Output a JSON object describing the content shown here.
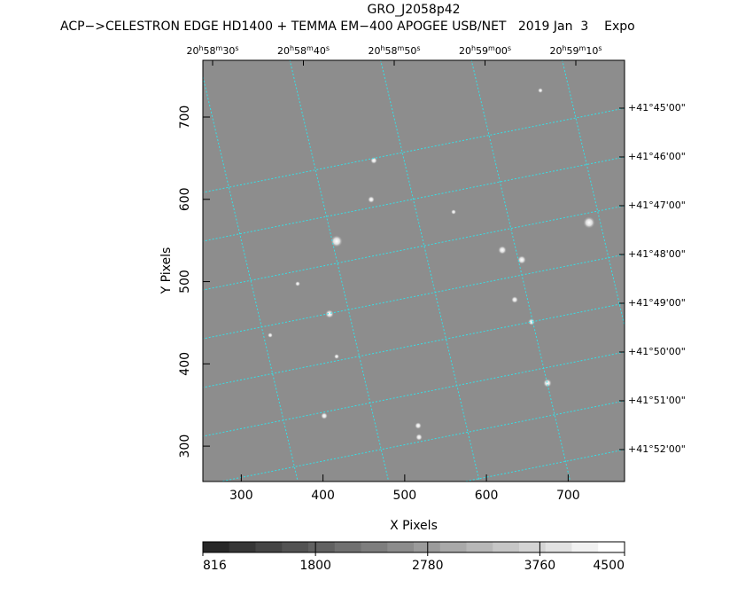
{
  "chart_data": {
    "type": "image",
    "title": "GRO_J2058p42",
    "subtitle": "ACP−>CELESTRON EDGE HD1400 + TEMMA EM−400 APOGEE USB/NET   2019 Jan  3    Expo",
    "x_label": "X Pixels",
    "y_label": "Y Pixels",
    "xlim": [
      253,
      769
    ],
    "ylim": [
      257,
      769
    ],
    "xticks": [
      300,
      400,
      500,
      600,
      700
    ],
    "yticks": [
      300,
      400,
      500,
      600,
      700
    ],
    "ra_ticks": [
      [
        "20",
        "h",
        "58",
        "m",
        "30",
        "s"
      ],
      [
        "20",
        "h",
        "58",
        "m",
        "40",
        "s"
      ],
      [
        "20",
        "h",
        "58",
        "m",
        "50",
        "s"
      ],
      [
        "20",
        "h",
        "59",
        "m",
        "00",
        "s"
      ],
      [
        "20",
        "h",
        "59",
        "m",
        "10",
        "s"
      ]
    ],
    "dec_ticks": [
      "+41°45'00\"",
      "+41°46'00\"",
      "+41°47'00\"",
      "+41°48'00\"",
      "+41°49'00\"",
      "+41°50'00\"",
      "+41°51'00\"",
      "+41°52'00\""
    ],
    "grid_color": "#33e0e8",
    "colorbar": {
      "clim": [
        816,
        4500
      ],
      "ticks": [
        816,
        1800,
        2780,
        3760,
        4500
      ]
    }
  }
}
